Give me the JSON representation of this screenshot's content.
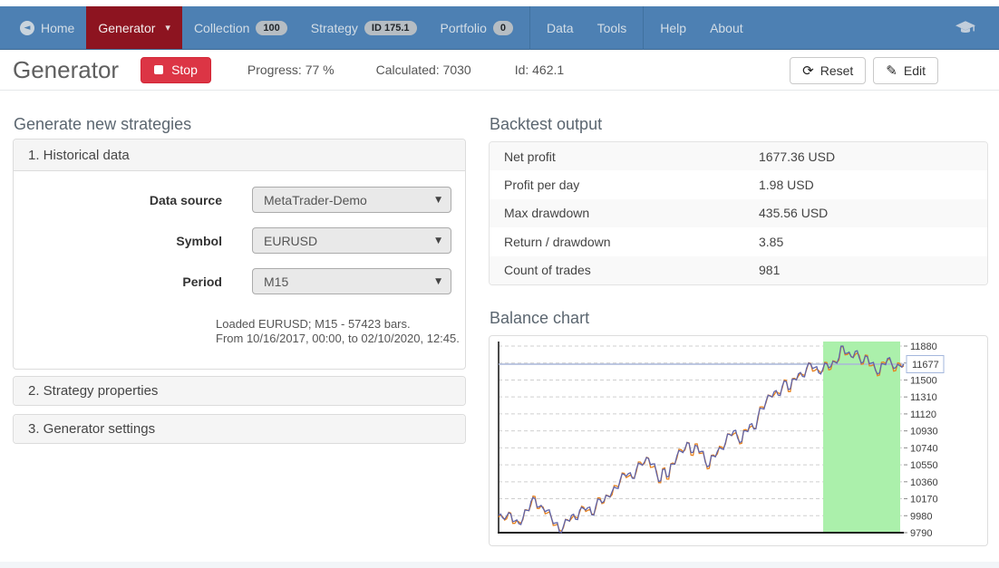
{
  "colors": {
    "navbar_bg": "#4d80b3",
    "active_nav_bg": "#8d1420",
    "stop_button": "#dc3545",
    "oos_region_green": "#abf0ab",
    "balance_line": "#5f63a8",
    "equity_line": "#e8821c",
    "current_balance_line": "#a9b6d9"
  },
  "navbar": {
    "items": [
      {
        "label": "Home"
      },
      {
        "label": "Generator",
        "caret": "▾"
      },
      {
        "label": "Collection",
        "badge": "100"
      },
      {
        "label": "Strategy",
        "badge": "ID 175.1"
      },
      {
        "label": "Portfolio",
        "badge": "0"
      },
      {
        "label": "Data"
      },
      {
        "label": "Tools"
      },
      {
        "label": "Help"
      },
      {
        "label": "About"
      }
    ],
    "right_icon": "graduation-cap"
  },
  "toolbar": {
    "title": "Generator",
    "stop_label": "Stop",
    "progress": "Progress: 77 %",
    "calculated": "Calculated: 7030",
    "id": "Id: 462.1",
    "reset_label": "Reset",
    "edit_label": "Edit"
  },
  "generate_panel": {
    "heading": "Generate new strategies",
    "historical": {
      "title": "1. Historical data",
      "fields": [
        {
          "label": "Data source",
          "value": "MetaTrader-Demo"
        },
        {
          "label": "Symbol",
          "value": "EURUSD"
        },
        {
          "label": "Period",
          "value": "M15"
        }
      ],
      "info_lines": [
        "Loaded EURUSD; M15 - 57423 bars.",
        "From 10/16/2017, 00:00, to 02/10/2020, 12:45."
      ]
    },
    "strategy_properties_title": "2. Strategy properties",
    "generator_settings_title": "3. Generator settings"
  },
  "backtest": {
    "heading": "Backtest output",
    "rows": [
      {
        "label": "Net profit",
        "value": "1677.36 USD"
      },
      {
        "label": "Profit per day",
        "value": "1.98 USD"
      },
      {
        "label": "Max drawdown",
        "value": "435.56 USD"
      },
      {
        "label": "Return / drawdown",
        "value": "3.85"
      },
      {
        "label": "Count of trades",
        "value": "981"
      }
    ]
  },
  "balance_chart": {
    "heading": "Balance chart"
  },
  "chart_data": {
    "type": "line",
    "title": "Balance chart",
    "xlabel": "",
    "ylabel": "",
    "ylim": [
      9790,
      11880
    ],
    "y_ticks": [
      9790,
      9980,
      10170,
      10360,
      10550,
      10740,
      10930,
      11120,
      11310,
      11500,
      11690,
      11880
    ],
    "grid": "dashed-horizontal",
    "legend_position": "none",
    "current_balance": 11677,
    "current_balance_label": "11677",
    "oos_green_region": {
      "start_frac": 0.801,
      "end_frac": 0.991
    },
    "series": [
      {
        "name": "Balance",
        "color": "#5f63a8",
        "values": [
          9985,
          9955,
          9975,
          10000,
          9920,
          9890,
          9950,
          10040,
          10140,
          10170,
          10080,
          10060,
          10040,
          9960,
          9900,
          9800,
          9860,
          9930,
          9985,
          9940,
          10040,
          10060,
          10070,
          9990,
          10090,
          10160,
          10140,
          10200,
          10250,
          10290,
          10380,
          10440,
          10450,
          10400,
          10500,
          10560,
          10580,
          10620,
          10560,
          10450,
          10370,
          10500,
          10420,
          10560,
          10650,
          10700,
          10730,
          10790,
          10690,
          10760,
          10700,
          10580,
          10540,
          10650,
          10700,
          10730,
          10800,
          10890,
          10930,
          10850,
          10810,
          10930,
          11000,
          10950,
          11090,
          11180,
          11260,
          11320,
          11370,
          11330,
          11430,
          11480,
          11400,
          11510,
          11570,
          11540,
          11630,
          11680,
          11640,
          11580,
          11620,
          11680,
          11650,
          11700,
          11750,
          11880,
          11800,
          11760,
          11820,
          11750,
          11700,
          11760,
          11690,
          11610,
          11580,
          11680,
          11740,
          11680,
          11640,
          11660,
          11677
        ]
      },
      {
        "name": "Equity",
        "color": "#e8821c",
        "values": [
          9965,
          9970,
          9945,
          10010,
          9895,
          9910,
          9935,
          10045,
          10105,
          10195,
          10060,
          10075,
          10010,
          9970,
          9875,
          9820,
          9845,
          9935,
          9950,
          9965,
          10020,
          10075,
          10040,
          10000,
          10065,
          10180,
          10125,
          10205,
          10215,
          10315,
          10360,
          10455,
          10420,
          10410,
          10475,
          10580,
          10565,
          10625,
          10525,
          10475,
          10350,
          10515,
          10390,
          10570,
          10625,
          10720,
          10715,
          10795,
          10655,
          10785,
          10680,
          10595,
          10510,
          10660,
          10675,
          10750,
          10785,
          10895,
          10895,
          10875,
          10790,
          10945,
          10970,
          10960,
          11065,
          11200,
          11245,
          11325,
          11335,
          11355,
          11410,
          11495,
          11370,
          11520,
          11545,
          11560,
          11615,
          11685,
          11605,
          11605,
          11600,
          11695,
          11620,
          11710,
          11725,
          11875,
          11785,
          11765,
          11785,
          11775,
          11680,
          11775,
          11660,
          11620,
          11555,
          11700,
          11725,
          11685,
          11605,
          11685,
          11657
        ]
      }
    ]
  }
}
